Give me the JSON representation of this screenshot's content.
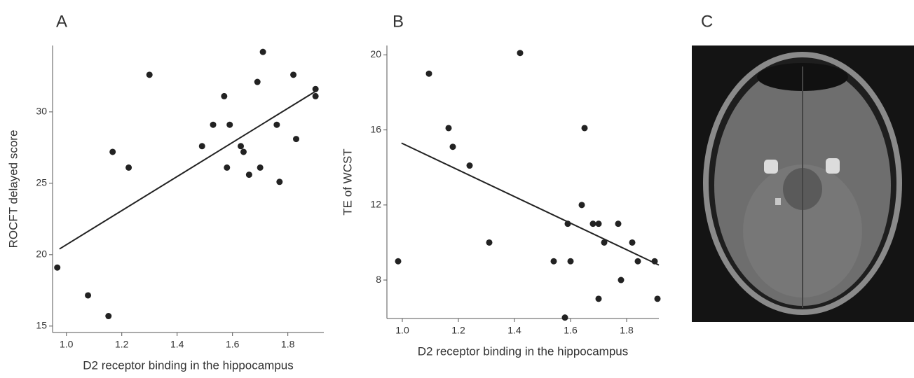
{
  "chart_data": [
    {
      "type": "scatter",
      "title": "A",
      "xlabel": "D2 receptor binding in the hippocampus",
      "ylabel": "ROCFT delayed score",
      "x": [
        0.967,
        1.078,
        1.152,
        1.167,
        1.225,
        1.3,
        1.49,
        1.53,
        1.57,
        1.58,
        1.59,
        1.63,
        1.64,
        1.66,
        1.69,
        1.7,
        1.71,
        1.76,
        1.77,
        1.82,
        1.83,
        1.9,
        1.9
      ],
      "values": [
        19.1,
        17.15,
        15.7,
        27.2,
        26.1,
        32.6,
        27.6,
        29.1,
        31.1,
        26.1,
        29.1,
        27.6,
        27.2,
        25.6,
        32.1,
        26.1,
        34.2,
        29.1,
        25.1,
        32.6,
        28.1,
        31.6,
        31.1
      ],
      "color": "#222222",
      "fit": {
        "x": [
          0.975,
          1.905
        ],
        "values": [
          20.4,
          31.5
        ]
      },
      "xlim": [
        0.95,
        1.93
      ],
      "ylim": [
        14.55,
        34.65
      ],
      "xticks": [
        {
          "value": 1,
          "label": "1.0"
        },
        1.2,
        1.4,
        1.6,
        1.8
      ],
      "yticks": [
        15,
        20,
        25,
        30
      ]
    },
    {
      "type": "scatter",
      "title": "B",
      "xlabel": "D2 receptor binding in the hippocampus",
      "ylabel": "TE of WCST",
      "x": [
        0.985,
        1.095,
        1.165,
        1.18,
        1.24,
        1.31,
        1.42,
        1.54,
        1.58,
        1.59,
        1.6,
        1.64,
        1.65,
        1.68,
        1.7,
        1.7,
        1.72,
        1.77,
        1.78,
        1.82,
        1.84,
        1.9,
        1.91
      ],
      "values": [
        9.0,
        19.0,
        16.1,
        15.1,
        14.1,
        10.0,
        20.1,
        9.0,
        6.0,
        11.0,
        9.0,
        12.0,
        16.1,
        11.0,
        11.0,
        7.0,
        10.0,
        11.0,
        8.0,
        10.0,
        9.0,
        9.0,
        7.0
      ],
      "color": "#222222",
      "fit": {
        "x": [
          0.997,
          1.915
        ],
        "values": [
          15.3,
          8.8
        ]
      },
      "xlim": [
        0.945,
        1.915
      ],
      "ylim": [
        5.95,
        20.5
      ],
      "xticks": [
        {
          "value": 1,
          "label": "1.0"
        },
        1.2,
        1.4,
        1.6,
        1.8
      ],
      "yticks": [
        8,
        12,
        16,
        20
      ]
    }
  ],
  "panel_c": {
    "label": "C"
  }
}
